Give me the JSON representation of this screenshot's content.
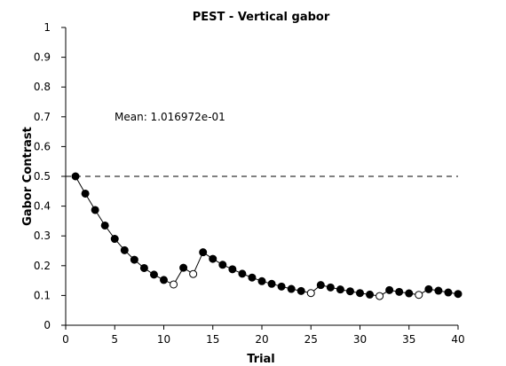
{
  "chart_data": {
    "type": "line",
    "title": "PEST - Vertical gabor",
    "xlabel": "Trial",
    "ylabel": "Gabor Contrast",
    "xlim": [
      0,
      40
    ],
    "ylim": [
      0,
      1
    ],
    "xticks": [
      0,
      5,
      10,
      15,
      20,
      25,
      30,
      35,
      40
    ],
    "yticks": [
      0,
      0.1,
      0.2,
      0.3,
      0.4,
      0.5,
      0.6,
      0.7,
      0.8,
      0.9,
      1
    ],
    "xtick_labels": [
      "0",
      "5",
      "10",
      "15",
      "20",
      "25",
      "30",
      "35",
      "40"
    ],
    "ytick_labels": [
      "0",
      "0.1",
      "0.2",
      "0.3",
      "0.4",
      "0.5",
      "0.6",
      "0.7",
      "0.8",
      "0.9",
      "1"
    ],
    "grid": false,
    "reference_line": {
      "y": 0.5,
      "style": "dashed"
    },
    "annotation": "Mean: 1.016972e-01",
    "series": [
      {
        "x": [
          1,
          2,
          3,
          4,
          5,
          6,
          7,
          8,
          9,
          10,
          11,
          12,
          13,
          14,
          15,
          16,
          17,
          18,
          19,
          20,
          21,
          22,
          23,
          24,
          25,
          26,
          27,
          28,
          29,
          30,
          31,
          32,
          33,
          34,
          35,
          36,
          37,
          38,
          39,
          40
        ],
        "y": [
          0.5,
          0.442,
          0.387,
          0.335,
          0.29,
          0.252,
          0.22,
          0.192,
          0.17,
          0.152,
          0.137,
          0.193,
          0.172,
          0.245,
          0.223,
          0.203,
          0.188,
          0.173,
          0.16,
          0.148,
          0.139,
          0.13,
          0.122,
          0.115,
          0.108,
          0.135,
          0.127,
          0.12,
          0.114,
          0.108,
          0.103,
          0.098,
          0.118,
          0.112,
          0.107,
          0.102,
          0.121,
          0.116,
          0.11,
          0.105
        ],
        "marker_filled": [
          true,
          true,
          true,
          true,
          true,
          true,
          true,
          true,
          true,
          true,
          false,
          true,
          false,
          true,
          true,
          true,
          true,
          true,
          true,
          true,
          true,
          true,
          true,
          true,
          false,
          true,
          true,
          true,
          true,
          true,
          true,
          false,
          true,
          true,
          true,
          false,
          true,
          true,
          true,
          true
        ]
      }
    ],
    "colors": {
      "line": "#000000",
      "marker_fill": "#000000",
      "marker_open": "#ffffff"
    }
  }
}
